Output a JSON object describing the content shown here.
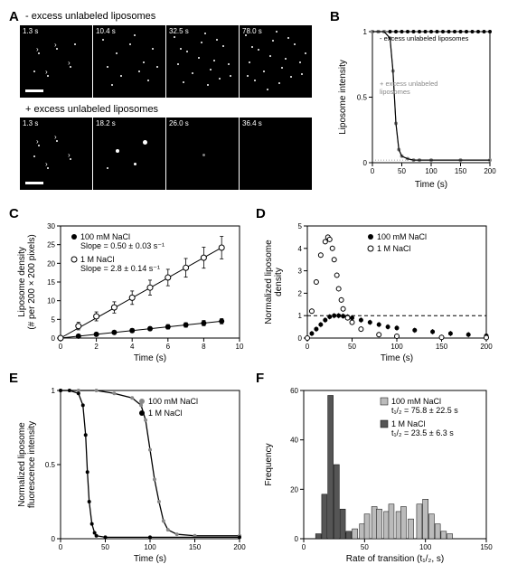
{
  "panels": {
    "A": {
      "label": "A"
    },
    "B": {
      "label": "B"
    },
    "C": {
      "label": "C"
    },
    "D": {
      "label": "D"
    },
    "E": {
      "label": "E"
    },
    "F": {
      "label": "F"
    }
  },
  "panel_A": {
    "condition_label_top": "- excess unlabeled liposomes",
    "condition_label_bottom": "+ excess unlabeled liposomes",
    "top_times": [
      "1.3 s",
      "10.4 s",
      "32.5 s",
      "78.0 s"
    ],
    "bottom_times": [
      "1.3 s",
      "18.2 s",
      "26.0 s",
      "36.4 s"
    ],
    "top_dots": [
      15,
      25,
      35,
      40
    ],
    "bottom_dots": [
      12,
      8,
      3,
      0
    ]
  },
  "panel_B": {
    "type": "line",
    "xlabel": "Time (s)",
    "ylabel": "Liposome intensity",
    "xlim": [
      0,
      200
    ],
    "ylim": [
      0,
      1.0
    ],
    "xticks": [
      0,
      50,
      100,
      150,
      200
    ],
    "yticks": [
      0,
      0.5,
      1.0
    ],
    "legend_top": "- excess unlabeled liposomes",
    "legend_gray": "+ excess unlabeled",
    "legend_gray2": "liposomes",
    "series": [
      {
        "name": "minus",
        "color": "#000000",
        "marker": "circle_filled",
        "data": [
          [
            0,
            1
          ],
          [
            10,
            1
          ],
          [
            20,
            1
          ],
          [
            30,
            1
          ],
          [
            40,
            1
          ],
          [
            50,
            1
          ],
          [
            60,
            1
          ],
          [
            70,
            1
          ],
          [
            80,
            1
          ],
          [
            90,
            1
          ],
          [
            100,
            1
          ],
          [
            110,
            1
          ],
          [
            120,
            1
          ],
          [
            130,
            1
          ],
          [
            140,
            1
          ],
          [
            150,
            1
          ],
          [
            160,
            1
          ],
          [
            170,
            1
          ],
          [
            180,
            1
          ],
          [
            190,
            1
          ],
          [
            200,
            1
          ]
        ]
      },
      {
        "name": "plus",
        "color": "#888888",
        "marker": "circle_filled",
        "data": [
          [
            0,
            1
          ],
          [
            10,
            1
          ],
          [
            20,
            1
          ],
          [
            30,
            0.95
          ],
          [
            35,
            0.7
          ],
          [
            40,
            0.3
          ],
          [
            45,
            0.1
          ],
          [
            50,
            0.05
          ],
          [
            60,
            0.03
          ],
          [
            70,
            0.02
          ],
          [
            80,
            0.02
          ],
          [
            100,
            0.02
          ],
          [
            150,
            0.02
          ],
          [
            200,
            0.02
          ]
        ]
      }
    ],
    "fit_line_color": "#000000",
    "title_fontsize": 8
  },
  "panel_C": {
    "type": "scatter_line",
    "xlabel": "Time (s)",
    "ylabel": "Liposome density\n(# per 200 × 200 pixels)",
    "ylabel_line1": "Liposome density",
    "ylabel_line2": "(# per 200 × 200 pixels)",
    "xlim": [
      0,
      10
    ],
    "ylim": [
      0,
      30
    ],
    "xticks": [
      0,
      2,
      4,
      6,
      8,
      10
    ],
    "yticks": [
      0,
      5,
      10,
      15,
      20,
      25,
      30
    ],
    "legend_100": "100 mM NaCl",
    "legend_100_slope": "Slope = 0.50 ± 0.03 s⁻¹",
    "legend_1M": "1 M NaCl",
    "legend_1M_slope": "Slope = 2.8 ± 0.14 s⁻¹",
    "series": [
      {
        "name": "100mM",
        "color": "#000000",
        "marker": "circle_filled",
        "data": [
          [
            0,
            0
          ],
          [
            1,
            0.5
          ],
          [
            2,
            1
          ],
          [
            3,
            1.5
          ],
          [
            4,
            2
          ],
          [
            5,
            2.5
          ],
          [
            6,
            3
          ],
          [
            7,
            3.5
          ],
          [
            8,
            4
          ],
          [
            9,
            4.5
          ]
        ],
        "errors": [
          0.3,
          0.3,
          0.4,
          0.4,
          0.5,
          0.5,
          0.6,
          0.6,
          0.7,
          0.7
        ]
      },
      {
        "name": "1M",
        "color": "#000000",
        "marker": "circle_open",
        "data": [
          [
            0,
            0
          ],
          [
            1,
            3.2
          ],
          [
            2,
            5.8
          ],
          [
            3,
            8.2
          ],
          [
            4,
            10.8
          ],
          [
            5,
            13.5
          ],
          [
            6,
            16.2
          ],
          [
            7,
            18.8
          ],
          [
            8,
            21.5
          ],
          [
            9,
            24.2
          ]
        ],
        "errors": [
          0.5,
          1,
          1.2,
          1.5,
          1.8,
          2,
          2.2,
          2.5,
          2.8,
          3
        ]
      }
    ]
  },
  "panel_D": {
    "type": "scatter",
    "xlabel": "Time (s)",
    "ylabel": "Normalized liposome\ndensity",
    "ylabel_line1": "Normalized liposome",
    "ylabel_line2": "density",
    "xlim": [
      0,
      200
    ],
    "ylim": [
      0,
      5.0
    ],
    "xticks": [
      0,
      50,
      100,
      150,
      200
    ],
    "yticks": [
      0,
      1.0,
      2.0,
      3.0,
      4.0,
      5.0
    ],
    "legend_100": "100 mM NaCl",
    "legend_1M": "1 M NaCl",
    "series": [
      {
        "name": "100mM",
        "color": "#000000",
        "marker": "circle_filled",
        "data": [
          [
            0,
            0
          ],
          [
            5,
            0.2
          ],
          [
            10,
            0.4
          ],
          [
            15,
            0.6
          ],
          [
            20,
            0.8
          ],
          [
            25,
            0.95
          ],
          [
            30,
            1.0
          ],
          [
            35,
            1.0
          ],
          [
            40,
            0.98
          ],
          [
            45,
            0.95
          ],
          [
            50,
            0.9
          ],
          [
            60,
            0.8
          ],
          [
            70,
            0.7
          ],
          [
            80,
            0.6
          ],
          [
            90,
            0.5
          ],
          [
            100,
            0.45
          ],
          [
            120,
            0.35
          ],
          [
            140,
            0.28
          ],
          [
            160,
            0.2
          ],
          [
            180,
            0.15
          ],
          [
            200,
            0.1
          ]
        ]
      },
      {
        "name": "1M",
        "color": "#000000",
        "marker": "circle_open",
        "data": [
          [
            0,
            0
          ],
          [
            5,
            1.2
          ],
          [
            10,
            2.5
          ],
          [
            15,
            3.7
          ],
          [
            20,
            4.3
          ],
          [
            23,
            4.5
          ],
          [
            25,
            4.4
          ],
          [
            28,
            4.0
          ],
          [
            30,
            3.5
          ],
          [
            33,
            2.8
          ],
          [
            35,
            2.2
          ],
          [
            38,
            1.7
          ],
          [
            40,
            1.3
          ],
          [
            45,
            0.9
          ],
          [
            50,
            0.7
          ],
          [
            60,
            0.4
          ],
          [
            80,
            0.15
          ],
          [
            100,
            0.08
          ],
          [
            150,
            0.03
          ],
          [
            200,
            0.02
          ]
        ]
      }
    ],
    "dashed_line_y": 1.0
  },
  "panel_E": {
    "type": "line",
    "xlabel": "Time (s)",
    "ylabel": "Normalized liposome\nfluorescence intensity",
    "ylabel_line1": "Normalized liposome",
    "ylabel_line2": "fluorescence intensity",
    "xlim": [
      0,
      200
    ],
    "ylim": [
      0,
      1.0
    ],
    "xticks": [
      0,
      50,
      100,
      150,
      200
    ],
    "yticks": [
      0,
      0.5,
      1.0
    ],
    "legend_100": "100 mM NaCl",
    "legend_1M": "1 M NaCl",
    "series": [
      {
        "name": "100mM",
        "color": "#888888",
        "marker": "circle_filled",
        "data": [
          [
            0,
            1
          ],
          [
            20,
            1
          ],
          [
            40,
            1
          ],
          [
            60,
            0.98
          ],
          [
            80,
            0.95
          ],
          [
            90,
            0.9
          ],
          [
            95,
            0.8
          ],
          [
            100,
            0.6
          ],
          [
            105,
            0.4
          ],
          [
            110,
            0.25
          ],
          [
            115,
            0.12
          ],
          [
            120,
            0.06
          ],
          [
            130,
            0.03
          ],
          [
            150,
            0.02
          ],
          [
            200,
            0.02
          ]
        ]
      },
      {
        "name": "1M",
        "color": "#000000",
        "marker": "circle_filled",
        "data": [
          [
            0,
            1
          ],
          [
            10,
            1
          ],
          [
            20,
            0.98
          ],
          [
            25,
            0.9
          ],
          [
            28,
            0.7
          ],
          [
            30,
            0.45
          ],
          [
            32,
            0.25
          ],
          [
            35,
            0.1
          ],
          [
            38,
            0.04
          ],
          [
            40,
            0.02
          ],
          [
            50,
            0.01
          ],
          [
            100,
            0.01
          ],
          [
            200,
            0.01
          ]
        ]
      }
    ]
  },
  "panel_F": {
    "type": "histogram",
    "xlabel": "Rate of transition (t₁/₂, s)",
    "ylabel": "Frequency",
    "xlim": [
      0,
      150
    ],
    "ylim": [
      0,
      60
    ],
    "xticks": [
      0,
      50,
      100,
      150
    ],
    "yticks": [
      0,
      20,
      40,
      60
    ],
    "legend_100": "100 mM NaCl",
    "legend_100_stat": "t₁/₂ = 75.8 ± 22.5 s",
    "legend_1M": "1 M NaCl",
    "legend_1M_stat": "t₁/₂ = 23.5 ± 6.3 s",
    "color_100": "#bbbbbb",
    "color_1M": "#555555",
    "bins_1M": [
      [
        12,
        2
      ],
      [
        17,
        18
      ],
      [
        22,
        58
      ],
      [
        27,
        30
      ],
      [
        32,
        12
      ],
      [
        37,
        3
      ]
    ],
    "bins_100": [
      [
        35,
        2
      ],
      [
        42,
        4
      ],
      [
        48,
        6
      ],
      [
        52,
        10
      ],
      [
        58,
        13
      ],
      [
        62,
        12
      ],
      [
        68,
        11
      ],
      [
        72,
        14
      ],
      [
        78,
        11
      ],
      [
        82,
        13
      ],
      [
        88,
        8
      ],
      [
        95,
        14
      ],
      [
        100,
        16
      ],
      [
        105,
        10
      ],
      [
        110,
        6
      ],
      [
        115,
        3
      ],
      [
        120,
        2
      ]
    ]
  },
  "colors": {
    "black": "#000000",
    "gray": "#888888",
    "lightgray": "#bbbbbb",
    "darkgray": "#555555",
    "white": "#ffffff"
  }
}
